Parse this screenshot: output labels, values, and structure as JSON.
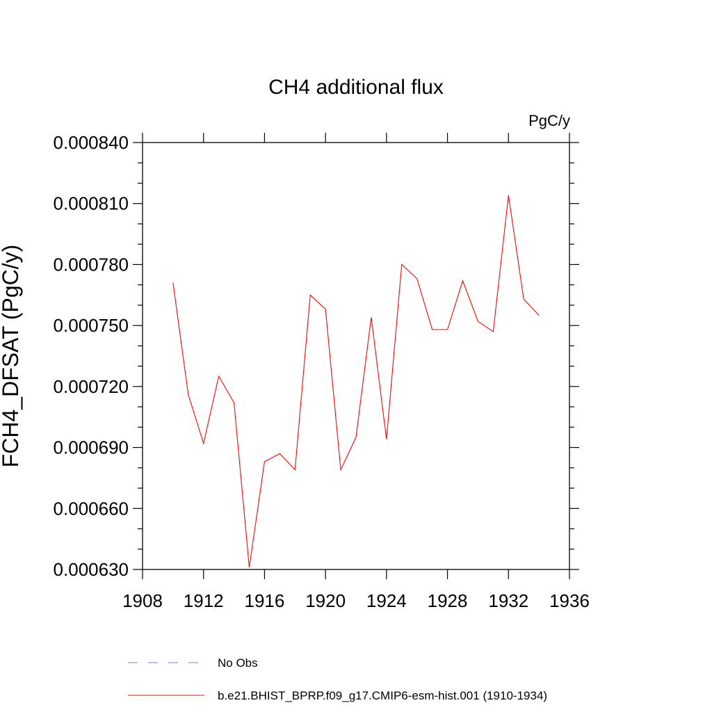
{
  "chart_data": {
    "type": "line",
    "title": "CH4 additional flux",
    "units_label": "PgC/y",
    "ylabel": "FCH4_DFSAT  (PgC/y)",
    "xlabel": "",
    "xlim": [
      1908,
      1936
    ],
    "ylim": [
      0.00063,
      0.00084
    ],
    "x_ticks": [
      1908,
      1912,
      1916,
      1920,
      1924,
      1928,
      1932,
      1936
    ],
    "x_tick_labels": [
      "1908",
      "1912",
      "1916",
      "1920",
      "1924",
      "1928",
      "1932",
      "1936"
    ],
    "y_ticks": [
      0.00063,
      0.00066,
      0.00069,
      0.00072,
      0.00075,
      0.00078,
      0.00081,
      0.00084
    ],
    "y_tick_labels": [
      "0.000630",
      "0.000660",
      "0.000690",
      "0.000720",
      "0.000750",
      "0.000780",
      "0.000810",
      "0.000840"
    ],
    "grid": false,
    "legend_position": "bottom",
    "series": [
      {
        "name": "b.e21.BHIST_BPRP.f09_g17.CMIP6-esm-hist.001 (1910-1934)",
        "color": "#ff0000",
        "style": "solid",
        "x": [
          1910,
          1911,
          1912,
          1913,
          1914,
          1915,
          1916,
          1917,
          1918,
          1919,
          1920,
          1921,
          1922,
          1923,
          1924,
          1925,
          1926,
          1927,
          1928,
          1929,
          1930,
          1931,
          1932,
          1933,
          1934
        ],
        "values": [
          0.000771,
          0.000716,
          0.000692,
          0.000725,
          0.000712,
          0.000631,
          0.000683,
          0.000687,
          0.000679,
          0.000765,
          0.000758,
          0.000679,
          0.000695,
          0.000754,
          0.000694,
          0.00078,
          0.000773,
          0.000748,
          0.000748,
          0.000772,
          0.000752,
          0.000747,
          0.000814,
          0.000763,
          0.000755
        ]
      }
    ],
    "legend": [
      {
        "label": "No Obs",
        "color": "#7f7fcc",
        "style": "dashed"
      },
      {
        "label": "b.e21.BHIST_BPRP.f09_g17.CMIP6-esm-hist.001 (1910-1934)",
        "color": "#ff0000",
        "style": "solid"
      }
    ]
  }
}
